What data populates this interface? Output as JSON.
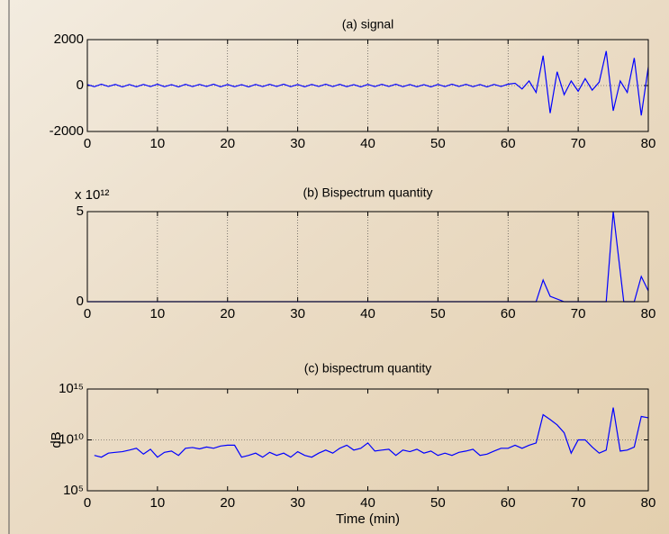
{
  "chart_data": [
    {
      "type": "line",
      "title": "(a) signal",
      "grid": "both",
      "color": "#0000ff",
      "x": [
        0,
        1,
        2,
        3,
        4,
        5,
        6,
        7,
        8,
        9,
        10,
        11,
        12,
        13,
        14,
        15,
        16,
        17,
        18,
        19,
        20,
        21,
        22,
        23,
        24,
        25,
        26,
        27,
        28,
        29,
        30,
        31,
        32,
        33,
        34,
        35,
        36,
        37,
        38,
        39,
        40,
        41,
        42,
        43,
        44,
        45,
        46,
        47,
        48,
        49,
        50,
        51,
        52,
        53,
        54,
        55,
        56,
        57,
        58,
        59,
        60,
        61,
        62,
        63,
        64,
        65,
        66,
        67,
        68,
        69,
        70,
        71,
        72,
        73,
        74,
        75,
        76,
        77,
        78,
        79,
        80
      ],
      "values": [
        40,
        -50,
        60,
        -40,
        50,
        -60,
        45,
        -55,
        50,
        -45,
        60,
        -50,
        40,
        -60,
        55,
        -45,
        50,
        -40,
        60,
        -55,
        45,
        -50,
        40,
        -60,
        50,
        -45,
        55,
        -40,
        60,
        -50,
        45,
        -55,
        50,
        -40,
        60,
        -45,
        55,
        -50,
        40,
        -60,
        50,
        -45,
        55,
        -40,
        60,
        -50,
        45,
        -55,
        40,
        -60,
        50,
        -45,
        60,
        -40,
        55,
        -50,
        45,
        -60,
        50,
        -40,
        60,
        100,
        -150,
        200,
        -300,
        1300,
        -1200,
        600,
        -400,
        200,
        -250,
        300,
        -200,
        150,
        1500,
        -1100,
        200,
        -300,
        1200,
        -1300,
        800
      ],
      "xlim": [
        0,
        80
      ],
      "xticks": [
        0,
        10,
        20,
        30,
        40,
        50,
        60,
        70,
        80
      ],
      "ylim": [
        -2000,
        2000
      ],
      "yticks": [
        -2000,
        0,
        2000
      ]
    },
    {
      "type": "line",
      "title": "(b) Bispectrum quantity",
      "grid": "both",
      "color": "#0000ff",
      "exponent_label": "x 10¹²",
      "x": [
        0,
        64,
        65,
        66,
        68,
        74,
        75,
        76.5,
        78,
        79,
        80
      ],
      "values": [
        0,
        0,
        1200000000000.0,
        300000000000.0,
        0,
        0,
        5000000000000.0,
        0,
        0,
        1400000000000.0,
        600000000000.0
      ],
      "xlim": [
        0,
        80
      ],
      "xticks": [
        0,
        10,
        20,
        30,
        40,
        50,
        60,
        70,
        80
      ],
      "ylim": [
        0,
        5000000000000.0
      ],
      "yticks": [
        0,
        {
          "value": 5000000000000.0,
          "label": "5"
        }
      ]
    },
    {
      "type": "line",
      "title": "(c) bispectrum quantity",
      "grid": "y",
      "log_y": true,
      "color": "#0000ff",
      "ylabel": "dB",
      "xlabel": "Time (min)",
      "x": [
        1,
        2,
        3,
        4,
        5,
        6,
        7,
        8,
        9,
        10,
        11,
        12,
        13,
        14,
        15,
        16,
        17,
        18,
        19,
        20,
        21,
        22,
        23,
        24,
        25,
        26,
        27,
        28,
        29,
        30,
        31,
        32,
        33,
        34,
        35,
        36,
        37,
        38,
        39,
        40,
        41,
        42,
        43,
        44,
        45,
        46,
        47,
        48,
        49,
        50,
        51,
        52,
        53,
        54,
        55,
        56,
        57,
        58,
        59,
        60,
        61,
        62,
        63,
        64,
        65,
        66,
        67,
        68,
        69,
        70,
        71,
        72,
        73,
        74,
        75,
        76,
        77,
        78,
        79,
        80
      ],
      "values": [
        300000000.0,
        200000000.0,
        500000000.0,
        600000000.0,
        700000000.0,
        1000000000.0,
        1500000000.0,
        400000000.0,
        1200000000.0,
        200000000.0,
        600000000.0,
        800000000.0,
        300000000.0,
        1500000000.0,
        1800000000.0,
        1300000000.0,
        2000000000.0,
        1500000000.0,
        2500000000.0,
        3000000000.0,
        3000000000.0,
        200000000.0,
        300000000.0,
        500000000.0,
        200000000.0,
        600000000.0,
        300000000.0,
        500000000.0,
        200000000.0,
        700000000.0,
        300000000.0,
        200000000.0,
        500000000.0,
        1000000000.0,
        500000000.0,
        1500000000.0,
        3000000000.0,
        1000000000.0,
        1500000000.0,
        5000000000.0,
        800000000.0,
        1000000000.0,
        1200000000.0,
        300000000.0,
        1000000000.0,
        700000000.0,
        1200000000.0,
        500000000.0,
        800000000.0,
        300000000.0,
        500000000.0,
        300000000.0,
        600000000.0,
        800000000.0,
        1200000000.0,
        300000000.0,
        400000000.0,
        800000000.0,
        1500000000.0,
        1500000000.0,
        3000000000.0,
        1500000000.0,
        3000000000.0,
        5000000000.0,
        3000000000000.0,
        1000000000000.0,
        300000000000.0,
        50000000000.0,
        500000000.0,
        10000000000.0,
        10000000000.0,
        2000000000.0,
        500000000.0,
        1000000000.0,
        15000000000000.0,
        800000000.0,
        1000000000.0,
        2000000000.0,
        2000000000000.0,
        1500000000000.0
      ],
      "xlim": [
        0,
        80
      ],
      "xticks": [
        0,
        10,
        20,
        30,
        40,
        50,
        60,
        70,
        80
      ],
      "ylim": [
        100000.0,
        1000000000000000.0
      ],
      "yticks": [
        {
          "value": 100000.0,
          "label": "10⁵"
        },
        {
          "value": 10000000000.0,
          "label": "10¹⁰"
        },
        {
          "value": 1000000000000000.0,
          "label": "10¹⁵"
        }
      ]
    }
  ]
}
